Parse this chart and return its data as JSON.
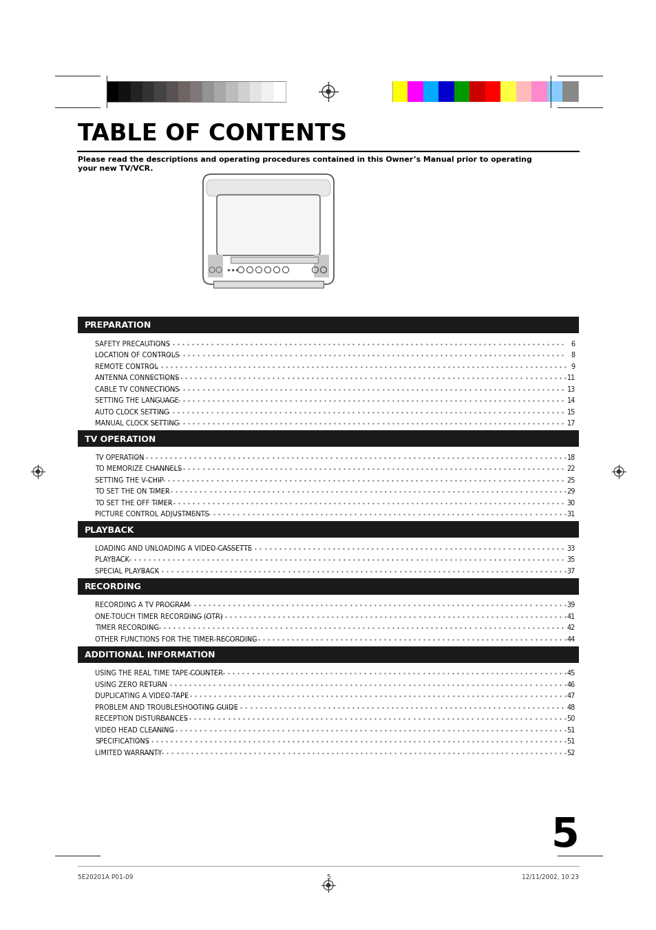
{
  "page_bg": "#ffffff",
  "title": "TABLE OF CONTENTS",
  "subtitle": "Please read the descriptions and operating procedures contained in this Owner’s Manual prior to operating\nyour new TV/VCR.",
  "sections": [
    {
      "header": "PREPARATION",
      "items": [
        [
          "SAFETY PRECAUTIONS",
          "6"
        ],
        [
          "LOCATION OF CONTROLS",
          "8"
        ],
        [
          "REMOTE CONTROL",
          "9"
        ],
        [
          "ANTENNA CONNECTIONS",
          "11"
        ],
        [
          "CABLE TV CONNECTIONS",
          "13"
        ],
        [
          "SETTING THE LANGUAGE",
          "14"
        ],
        [
          "AUTO CLOCK SETTING",
          "15"
        ],
        [
          "MANUAL CLOCK SETTING",
          "17"
        ]
      ]
    },
    {
      "header": "TV OPERATION",
      "items": [
        [
          "TV OPERATION",
          "18"
        ],
        [
          "TO MEMORIZE CHANNELS",
          "22"
        ],
        [
          "SETTING THE V-CHIP",
          "25"
        ],
        [
          "TO SET THE ON TIMER",
          "29"
        ],
        [
          "TO SET THE OFF TIMER",
          "30"
        ],
        [
          "PICTURE CONTROL ADJUSTMENTS",
          "31"
        ]
      ]
    },
    {
      "header": "PLAYBACK",
      "items": [
        [
          "LOADING AND UNLOADING A VIDEO CASSETTE",
          "33"
        ],
        [
          "PLAYBACK",
          "35"
        ],
        [
          "SPECIAL PLAYBACK",
          "37"
        ]
      ]
    },
    {
      "header": "RECORDING",
      "items": [
        [
          "RECORDING A TV PROGRAM",
          "39"
        ],
        [
          "ONE-TOUCH TIMER RECORDING (OTR)",
          "41"
        ],
        [
          "TIMER RECORDING",
          "42"
        ],
        [
          "OTHER FUNCTIONS FOR THE TIMER RECORDING",
          "44"
        ]
      ]
    },
    {
      "header": "ADDITIONAL INFORMATION",
      "items": [
        [
          "USING THE REAL TIME TAPE COUNTER",
          "45"
        ],
        [
          "USING ZERO RETURN",
          "46"
        ],
        [
          "DUPLICATING A VIDEO TAPE",
          "47"
        ],
        [
          "PROBLEM AND TROUBLESHOOTING GUIDE",
          "48"
        ],
        [
          "RECEPTION DISTURBANCES",
          "50"
        ],
        [
          "VIDEO HEAD CLEANING",
          "51"
        ],
        [
          "SPECIFICATIONS",
          "51"
        ],
        [
          "LIMITED WARRANTY",
          "52"
        ]
      ]
    }
  ],
  "header_bg": "#1a1a1a",
  "header_fg": "#ffffff",
  "footer_left": "5E20201A P01-09",
  "footer_center": "5",
  "footer_right": "12/11/2002, 10:23",
  "page_number": "5",
  "color_bar_left_colors": [
    "#000000",
    "#111111",
    "#222222",
    "#333333",
    "#444444",
    "#595252",
    "#6e6464",
    "#807878",
    "#939393",
    "#a8a8a8",
    "#bcbcbc",
    "#d0d0d0",
    "#e4e4e4",
    "#f2f2f2",
    "#ffffff"
  ],
  "color_bar_right_colors": [
    "#ffff00",
    "#ff00ff",
    "#00aaff",
    "#0000cc",
    "#009900",
    "#cc0000",
    "#ff0000",
    "#ffff44",
    "#ffbbbb",
    "#ff88cc",
    "#88ccff",
    "#888888"
  ]
}
